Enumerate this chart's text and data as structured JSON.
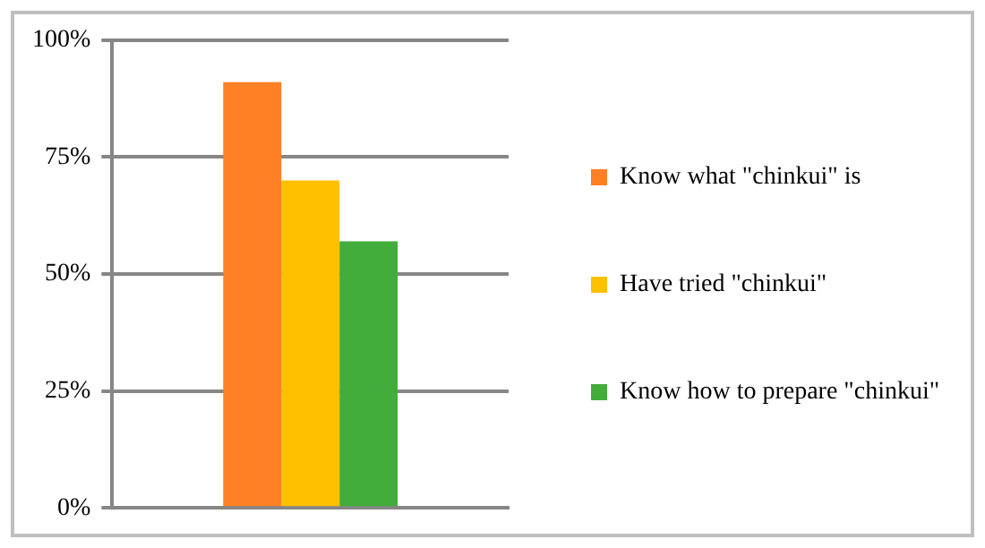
{
  "chart_data": {
    "type": "bar",
    "categories": [
      null
    ],
    "series": [
      {
        "name": "Know what \"chinkui\" is",
        "color": "#fe7f24",
        "values": [
          91
        ]
      },
      {
        "name": "Have tried \"chinkui\"",
        "color": "#ffc000",
        "values": [
          70
        ]
      },
      {
        "name": "Know how to prepare \"chinkui\"",
        "color": "#42ad3a",
        "values": [
          57
        ]
      }
    ],
    "ylim": [
      0,
      100
    ],
    "yticks": [
      {
        "value": 0,
        "label": "0%"
      },
      {
        "value": 25,
        "label": "25%"
      },
      {
        "value": 50,
        "label": "50%"
      },
      {
        "value": 75,
        "label": "75%"
      },
      {
        "value": 100,
        "label": "100%"
      }
    ],
    "grid": "y",
    "legend": "right"
  }
}
